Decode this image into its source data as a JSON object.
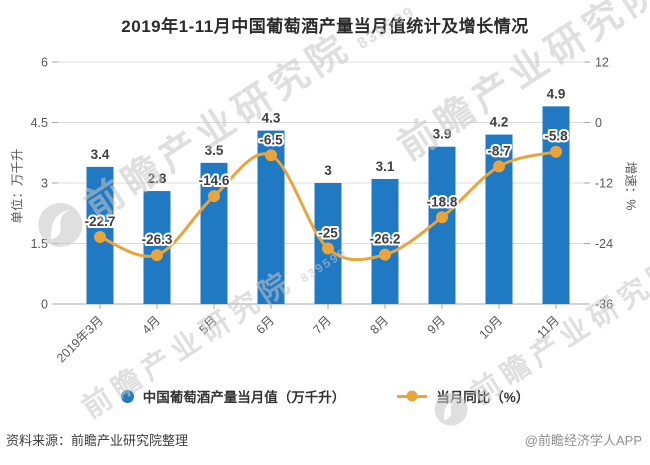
{
  "title": "2019年1-11月中国葡萄酒产量当月值统计及增长情况",
  "chart_data": {
    "type": "bar",
    "subtype": "bar+line combo, dual y-axis",
    "categories": [
      "2019年3月",
      "4月",
      "5月",
      "6月",
      "7月",
      "8月",
      "9月",
      "10月",
      "11月"
    ],
    "series": [
      {
        "name": "中国葡萄酒产量当月值（万千升）",
        "type": "bar",
        "axis": "left",
        "color": "#2079C3",
        "values": [
          3.4,
          2.8,
          3.5,
          4.3,
          3,
          3.1,
          3.9,
          4.2,
          4.9
        ]
      },
      {
        "name": "当月同比（%）",
        "type": "line",
        "axis": "right",
        "color": "#E9A43B",
        "values": [
          -22.7,
          -26.3,
          -14.6,
          -6.5,
          -25,
          -26.2,
          -18.8,
          -8.7,
          -5.8
        ]
      }
    ],
    "left_axis": {
      "label": "单位：万千升",
      "min": 0,
      "max": 6,
      "ticks": [
        0,
        1.5,
        3,
        4.5,
        6
      ]
    },
    "right_axis": {
      "label": "增速：%",
      "min": -36,
      "max": 12,
      "ticks": [
        -36,
        -24,
        -12,
        0,
        12
      ]
    },
    "grid": true,
    "legend_position": "bottom"
  },
  "legend": {
    "items": [
      {
        "label": "中国葡萄酒产量当月值（万千升）",
        "marker": "circle",
        "color": "#2079C3"
      },
      {
        "label": "当月同比（%）",
        "marker": "line-dot",
        "color": "#E9A43B"
      }
    ]
  },
  "footer": {
    "source": "资料来源：前瞻产业研究院整理",
    "credit": "@前瞻经济学人APP"
  },
  "watermark": {
    "text": "前瞻产业研究院",
    "sub": "839599"
  },
  "colors": {
    "bar": "#2079C3",
    "line": "#E9A43B",
    "grid": "#DCDCDC",
    "axis": "#A6A6A6",
    "tick_text": "#595959",
    "value_text": "#3F3F3F",
    "title_text": "#2B2B2B",
    "watermark": "#C6C6C6"
  }
}
